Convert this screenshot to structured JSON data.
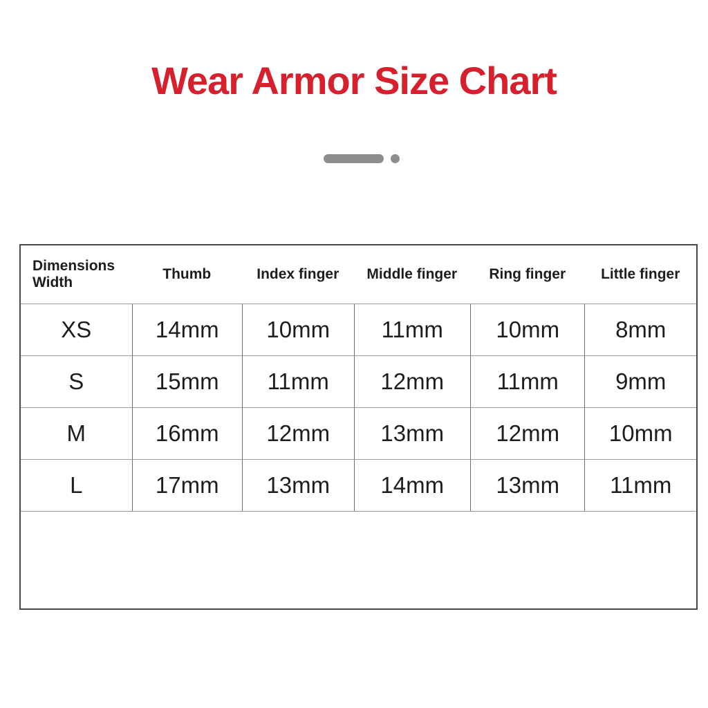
{
  "title": {
    "text": "Wear Armor Size Chart",
    "color": "#d7202e"
  },
  "divider": {
    "color": "#8d8d8d"
  },
  "table": {
    "corner_label_line1": "Dimensions",
    "corner_label_line2": "Width",
    "columns": [
      "Thumb",
      "Index finger",
      "Middle finger",
      "Ring finger",
      "Little finger"
    ],
    "rows": [
      {
        "size": "XS",
        "values": [
          "14mm",
          "10mm",
          "11mm",
          "10mm",
          "8mm"
        ]
      },
      {
        "size": "S",
        "values": [
          "15mm",
          "11mm",
          "12mm",
          "11mm",
          "9mm"
        ]
      },
      {
        "size": "M",
        "values": [
          "16mm",
          "12mm",
          "13mm",
          "12mm",
          "10mm"
        ]
      },
      {
        "size": "L",
        "values": [
          "17mm",
          "13mm",
          "14mm",
          "13mm",
          "11mm"
        ]
      }
    ]
  },
  "chart_data": {
    "type": "table",
    "title": "Wear Armor Size Chart",
    "columns": [
      "Dimensions Width",
      "Thumb",
      "Index finger",
      "Middle finger",
      "Ring finger",
      "Little finger"
    ],
    "rows": [
      [
        "XS",
        "14mm",
        "10mm",
        "11mm",
        "10mm",
        "8mm"
      ],
      [
        "S",
        "15mm",
        "11mm",
        "12mm",
        "11mm",
        "9mm"
      ],
      [
        "M",
        "16mm",
        "12mm",
        "13mm",
        "12mm",
        "10mm"
      ],
      [
        "L",
        "17mm",
        "13mm",
        "14mm",
        "13mm",
        "11mm"
      ]
    ],
    "units": "mm"
  }
}
